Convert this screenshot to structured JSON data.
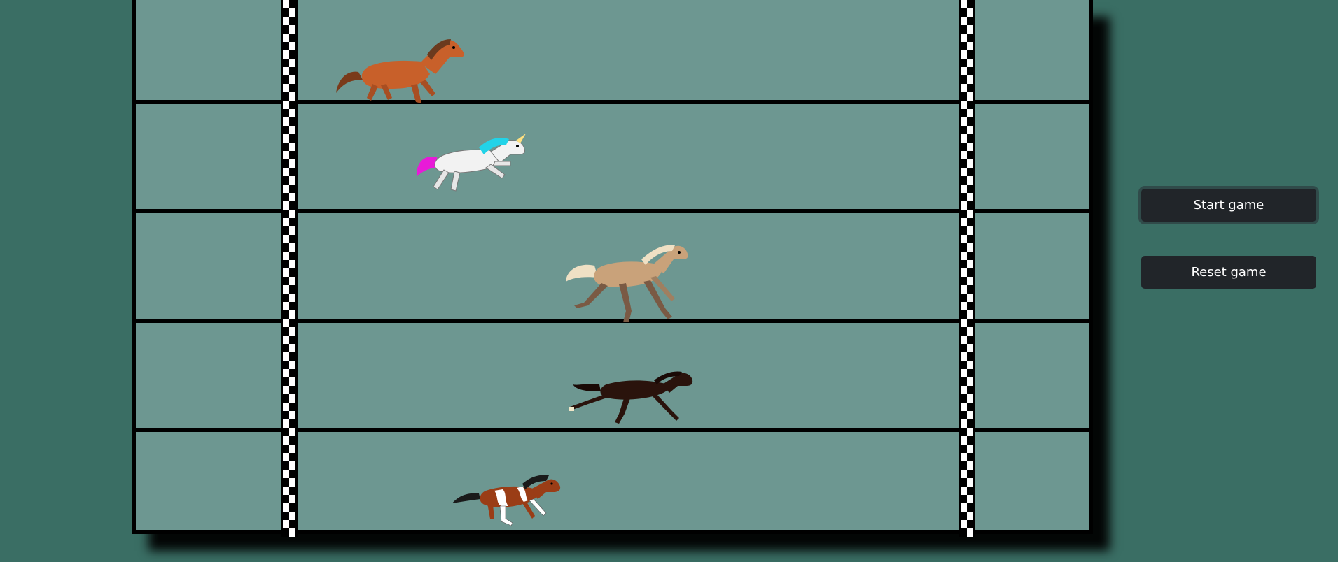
{
  "controls": {
    "start_label": "Start game",
    "reset_label": "Reset game"
  },
  "track": {
    "lanes": 5,
    "lane_color": "#6d9791",
    "background_color": "#3a6e64",
    "border_color": "#000000",
    "line_pattern": "checkered"
  },
  "horses": [
    {
      "lane": 1,
      "icon": "chestnut-horse-icon",
      "body_color": "#c8602a",
      "mane_color": "#6b3a1e"
    },
    {
      "lane": 2,
      "icon": "unicorn-icon",
      "body_color": "#f2f2f2",
      "mane_color": "#22d3e8",
      "tail_color": "#e81ad8"
    },
    {
      "lane": 3,
      "icon": "palomino-horse-icon",
      "body_color": "#c9a27a",
      "mane_color": "#efe0c4"
    },
    {
      "lane": 4,
      "icon": "dark-bay-horse-icon",
      "body_color": "#2a130c",
      "mane_color": "#1a0a06"
    },
    {
      "lane": 5,
      "icon": "paint-horse-icon",
      "body_color": "#9a3d16",
      "mane_color": "#1a1a1a",
      "patch_color": "#ffffff"
    }
  ]
}
